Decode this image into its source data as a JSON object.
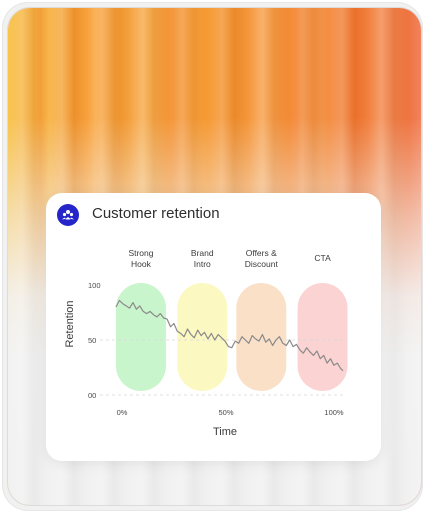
{
  "card": {
    "title": "Customer retention",
    "logo_icon": "team-logo-icon"
  },
  "colors": {
    "logo_bg": "#2525c9",
    "phase_strong_hook": "#c9f5cc",
    "phase_brand_intro": "#fcf8c2",
    "phase_offers_discount": "#fbe0c8",
    "phase_cta": "#fcd3d3",
    "line": "#8a8a8a"
  },
  "chart_data": {
    "type": "line",
    "title": "",
    "xlabel": "Time",
    "ylabel": "Retention",
    "x_tick_labels": [
      "0%",
      "50%",
      "100%"
    ],
    "y_tick_labels": [
      "100",
      "50",
      "00"
    ],
    "xlim": [
      0,
      100
    ],
    "ylim": [
      0,
      100
    ],
    "grid": "dashed at 50 and 0",
    "phases": [
      {
        "label": "Strong\nHook",
        "x_start": 0,
        "x_end": 22
      },
      {
        "label": "Brand\nIntro",
        "x_start": 27,
        "x_end": 49
      },
      {
        "label": "Offers &\nDiscount",
        "x_start": 53,
        "x_end": 75
      },
      {
        "label": "CTA",
        "x_start": 80,
        "x_end": 102
      }
    ],
    "series": [
      {
        "x": [
          0,
          1.5,
          3,
          4.5,
          6,
          7.5,
          9,
          10.5,
          12,
          13.5,
          15,
          16.5,
          18,
          19.5,
          21,
          22.5,
          24,
          25.5,
          27,
          28.5,
          30,
          31.5,
          33,
          34.5,
          36,
          37.5,
          39,
          40.5,
          42,
          43.5,
          45,
          46.5,
          48,
          49.5,
          51,
          52.5,
          54,
          55.5,
          57,
          58.5,
          60,
          61.5,
          63,
          64.5,
          66,
          67.5,
          69,
          70.5,
          72,
          73.5,
          75,
          76.5,
          78,
          79.5,
          81,
          82.5,
          84,
          85.5,
          87,
          88.5,
          90,
          91.5,
          93,
          94.5,
          96,
          97.5,
          99,
          100
        ],
        "values": [
          80,
          86,
          83,
          81,
          79,
          84,
          78,
          81,
          76,
          74,
          76,
          73,
          71,
          74,
          70,
          69,
          62,
          65,
          58,
          56,
          53,
          60,
          55,
          52,
          59,
          54,
          57,
          51,
          56,
          50,
          55,
          52,
          49,
          44,
          43,
          49,
          47,
          53,
          50,
          47,
          54,
          51,
          49,
          55,
          48,
          51,
          45,
          50,
          53,
          47,
          45,
          50,
          44,
          46,
          41,
          38,
          43,
          39,
          36,
          40,
          33,
          36,
          29,
          33,
          27,
          29,
          24,
          22
        ]
      }
    ]
  }
}
